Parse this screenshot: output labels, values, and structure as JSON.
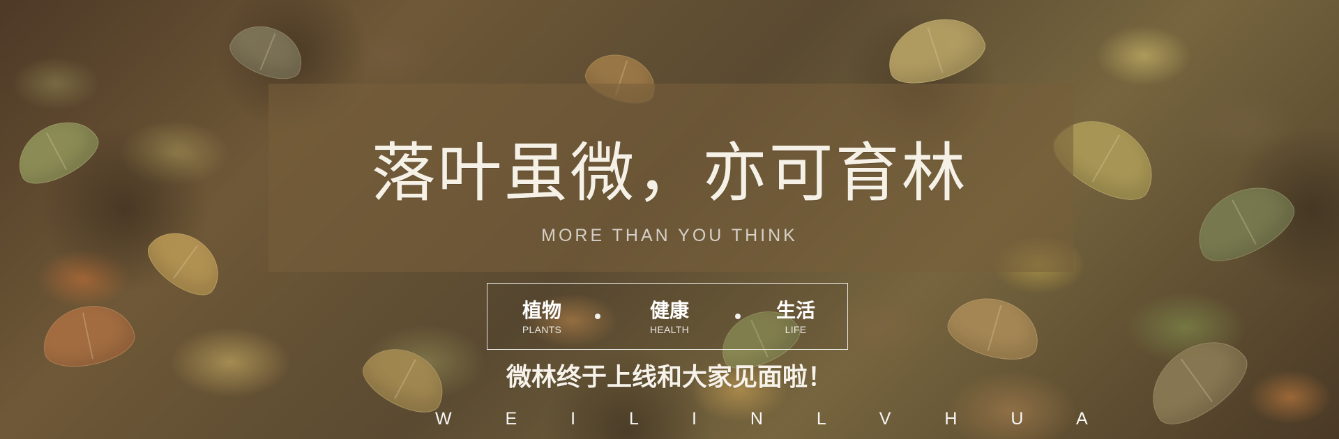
{
  "banner": {
    "headline": "落叶虽微，亦可育林",
    "subtitle": "MORE THAN YOU THINK",
    "categories": [
      {
        "zh": "植物",
        "en": "PLANTS"
      },
      {
        "zh": "健康",
        "en": "HEALTH"
      },
      {
        "zh": "生活",
        "en": "LIFE"
      }
    ],
    "separator": "·",
    "announcement": "微林终于上线和大家见面啦！",
    "brand_spaced": "W E I L I N L V H U A"
  },
  "colors": {
    "panel_overlay": "#785E3A",
    "text_primary": "#F6F1E7",
    "border": "#FFFFFF"
  }
}
